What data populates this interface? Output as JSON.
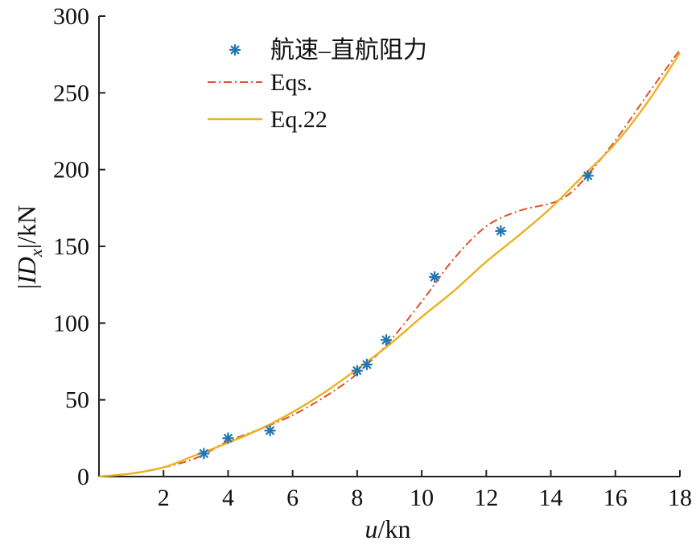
{
  "chart_data": {
    "type": "line",
    "title": "",
    "xlabel": {
      "main": "u",
      "unit": "/kn"
    },
    "ylabel": {
      "bar_open": "|",
      "main": "ID",
      "sub": "x",
      "bar_close": "|",
      "unit": "/kN"
    },
    "xlim": [
      0,
      18
    ],
    "ylim": [
      0,
      300
    ],
    "xticks": [
      2,
      4,
      6,
      8,
      10,
      12,
      14,
      16,
      18
    ],
    "yticks": [
      0,
      50,
      100,
      150,
      200,
      250,
      300
    ],
    "grid": false,
    "legend_position": "top-left",
    "series": [
      {
        "name": "航速–直航阻力",
        "kind": "scatter",
        "marker": "asterisk",
        "color": "#1f77b4",
        "points": [
          [
            3.25,
            15
          ],
          [
            4.0,
            25
          ],
          [
            5.3,
            30
          ],
          [
            8.0,
            69
          ],
          [
            8.3,
            73
          ],
          [
            8.9,
            89
          ],
          [
            10.4,
            130
          ],
          [
            12.45,
            160
          ],
          [
            15.15,
            196
          ]
        ]
      },
      {
        "name": "Eqs.",
        "kind": "line",
        "dash": "dashdot",
        "color": "#d9542b",
        "points": [
          [
            0,
            0
          ],
          [
            1,
            2
          ],
          [
            2,
            6
          ],
          [
            3,
            12
          ],
          [
            4,
            23
          ],
          [
            5,
            31
          ],
          [
            6,
            40
          ],
          [
            7,
            52
          ],
          [
            8,
            67
          ],
          [
            9,
            88
          ],
          [
            10,
            114
          ],
          [
            11,
            142
          ],
          [
            12,
            163
          ],
          [
            13,
            173
          ],
          [
            14,
            178
          ],
          [
            14.5,
            183
          ],
          [
            15,
            193
          ],
          [
            16,
            219
          ],
          [
            17,
            249
          ],
          [
            18,
            278
          ]
        ]
      },
      {
        "name": "Eq.22",
        "kind": "line",
        "dash": "solid",
        "color": "#edb120",
        "points": [
          [
            0,
            0
          ],
          [
            1,
            2
          ],
          [
            2,
            6
          ],
          [
            3,
            14
          ],
          [
            4,
            22
          ],
          [
            5,
            31
          ],
          [
            6,
            42
          ],
          [
            7,
            55
          ],
          [
            8,
            70
          ],
          [
            9,
            86
          ],
          [
            10,
            104
          ],
          [
            11,
            121
          ],
          [
            12,
            140
          ],
          [
            13,
            157
          ],
          [
            14,
            175
          ],
          [
            15,
            196
          ],
          [
            16,
            217
          ],
          [
            17,
            244
          ],
          [
            18,
            276
          ]
        ]
      }
    ]
  }
}
